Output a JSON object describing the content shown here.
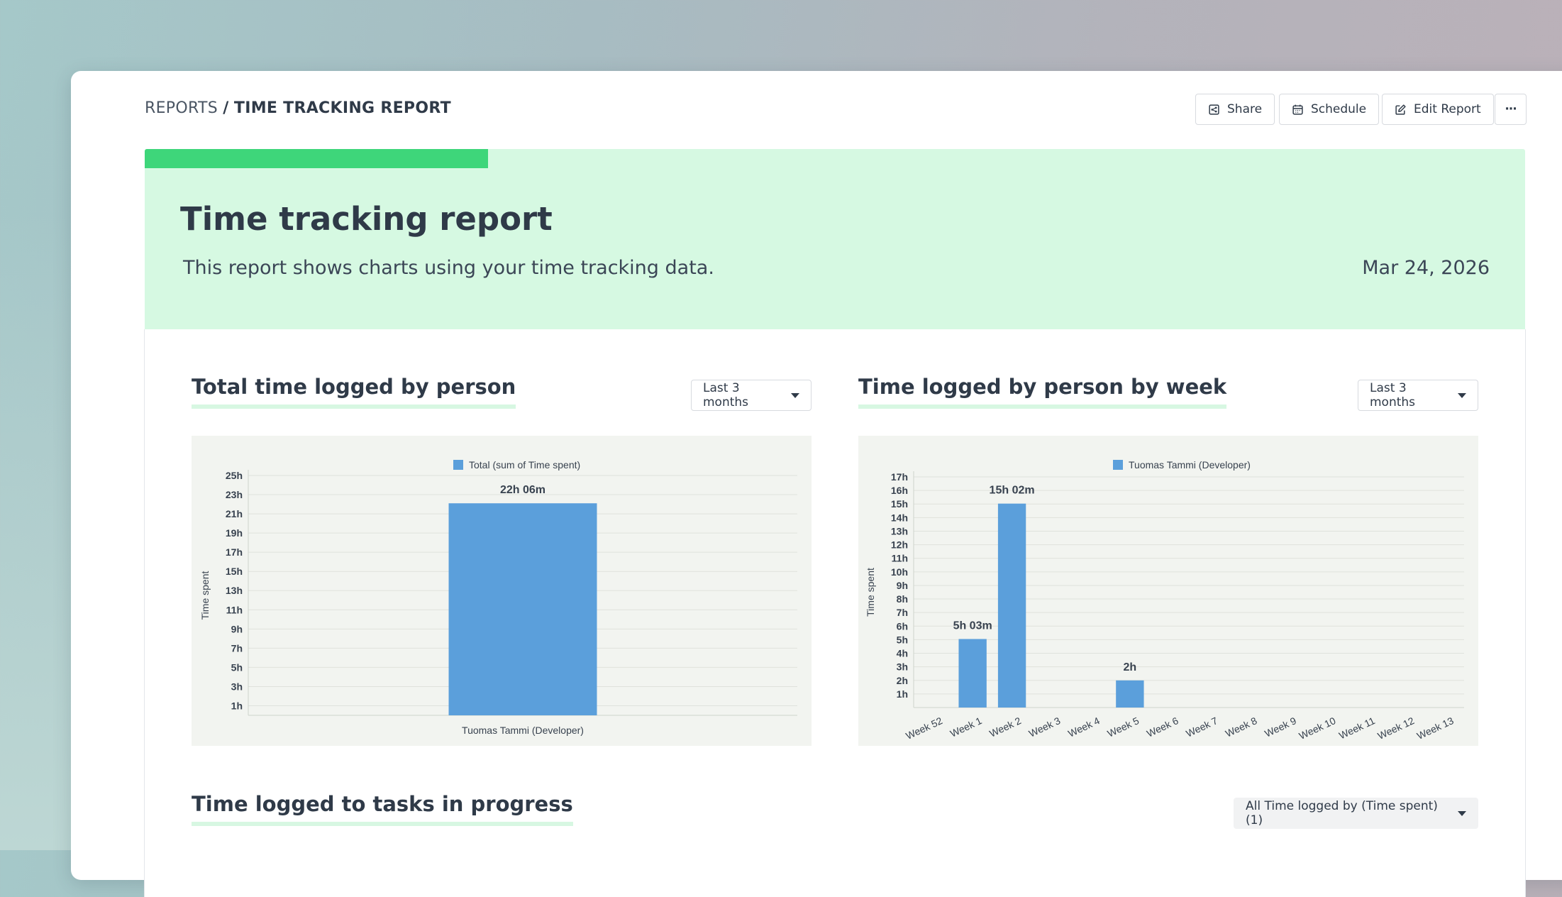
{
  "breadcrumb": {
    "parent": "REPORTS",
    "separator": "/",
    "current": "TIME TRACKING REPORT"
  },
  "toolbar": {
    "share_label": "Share",
    "schedule_label": "Schedule",
    "edit_label": "Edit Report",
    "more_label": "···"
  },
  "banner": {
    "title": "Time tracking report",
    "description": "This report shows charts using your time tracking data.",
    "date": "Mar 24, 2026",
    "accent_color": "#3ed67a",
    "background_color": "#d6f9e2"
  },
  "sections": {
    "total_by_person": {
      "title": "Total time logged by person",
      "range": "Last 3 months"
    },
    "by_person_by_week": {
      "title": "Time logged by person by week",
      "range": "Last 3 months"
    },
    "tasks_in_progress": {
      "title": "Time logged to tasks in progress",
      "filter": "All Time logged by (Time spent) (1)"
    }
  },
  "chart_data": [
    {
      "type": "bar",
      "legend": [
        "Total (sum of Time spent)"
      ],
      "ylabel": "Time spent",
      "yticks": [
        "1h",
        "3h",
        "5h",
        "7h",
        "9h",
        "11h",
        "13h",
        "15h",
        "17h",
        "19h",
        "21h",
        "23h",
        "25h"
      ],
      "ylim": [
        0,
        25
      ],
      "categories": [
        "Tuomas Tammi (Developer)"
      ],
      "values": [
        22.1
      ],
      "data_labels": [
        "22h 06m"
      ],
      "bar_color": "#5b9fdb",
      "grid": true,
      "legend_position": "top"
    },
    {
      "type": "bar",
      "legend": [
        "Tuomas Tammi (Developer)"
      ],
      "ylabel": "Time spent",
      "yticks": [
        "1h",
        "2h",
        "3h",
        "4h",
        "5h",
        "6h",
        "7h",
        "8h",
        "9h",
        "10h",
        "11h",
        "12h",
        "13h",
        "14h",
        "15h",
        "16h",
        "17h"
      ],
      "ylim": [
        0,
        17
      ],
      "categories": [
        "Week 52",
        "Week 1",
        "Week 2",
        "Week 3",
        "Week 4",
        "Week 5",
        "Week 6",
        "Week 7",
        "Week 8",
        "Week 9",
        "Week 10",
        "Week 11",
        "Week 12",
        "Week 13"
      ],
      "values": [
        0,
        5.05,
        15.03,
        0,
        0,
        2,
        0,
        0,
        0,
        0,
        0,
        0,
        0,
        0
      ],
      "data_labels": [
        "",
        "5h 03m",
        "15h 02m",
        "",
        "",
        "2h",
        "",
        "",
        "",
        "",
        "",
        "",
        "",
        ""
      ],
      "bar_color": "#5b9fdb",
      "grid": true,
      "legend_position": "top"
    }
  ]
}
